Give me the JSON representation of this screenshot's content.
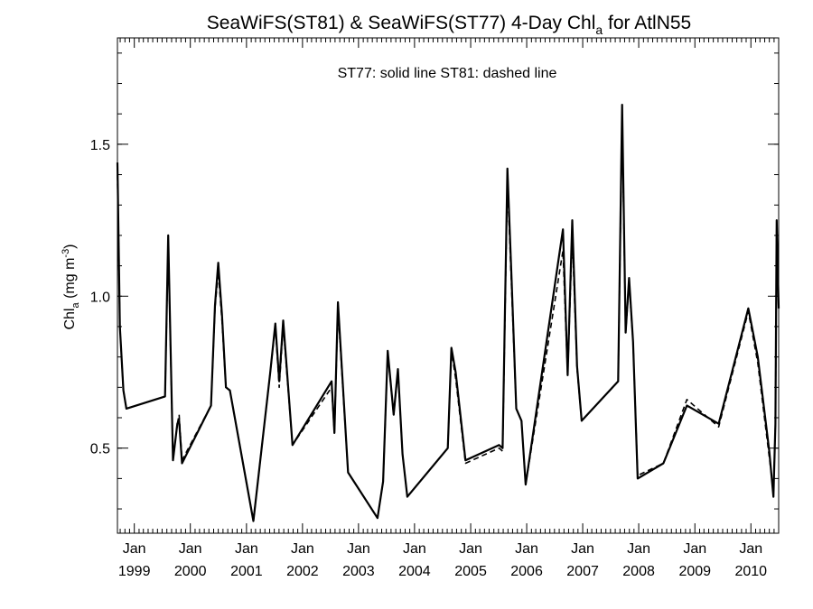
{
  "chart_data": {
    "type": "line",
    "title": {
      "main": "SeaWiFS(ST81) & SeaWiFS(ST77) 4-Day Chl",
      "subscript": "a",
      "suffix": " for AtlN55"
    },
    "ylabel": {
      "main": "Chl",
      "subscript": "a",
      "units_prefix": " (mg m",
      "units_superscript": "-3",
      "units_suffix": ")"
    },
    "annotation": "ST77: solid line   ST81: dashed line",
    "ylim": [
      0.22,
      1.85
    ],
    "yticks": [
      {
        "value": 0.5,
        "label": "0.5"
      },
      {
        "value": 1.0,
        "label": "1.0"
      },
      {
        "value": 1.5,
        "label": "1.5"
      }
    ],
    "y_minor_step": 0.1,
    "xlim": [
      "1998-09-13",
      "2010-07-01"
    ],
    "xticks": [
      {
        "date": "1999-01-01",
        "month": "Jan",
        "year": "1999"
      },
      {
        "date": "2000-01-01",
        "month": "Jan",
        "year": "2000"
      },
      {
        "date": "2001-01-01",
        "month": "Jan",
        "year": "2001"
      },
      {
        "date": "2002-01-01",
        "month": "Jan",
        "year": "2002"
      },
      {
        "date": "2003-01-01",
        "month": "Jan",
        "year": "2003"
      },
      {
        "date": "2004-01-01",
        "month": "Jan",
        "year": "2004"
      },
      {
        "date": "2005-01-01",
        "month": "Jan",
        "year": "2005"
      },
      {
        "date": "2006-01-01",
        "month": "Jan",
        "year": "2006"
      },
      {
        "date": "2007-01-01",
        "month": "Jan",
        "year": "2007"
      },
      {
        "date": "2008-01-01",
        "month": "Jan",
        "year": "2008"
      },
      {
        "date": "2009-01-01",
        "month": "Jan",
        "year": "2009"
      },
      {
        "date": "2010-01-01",
        "month": "Jan",
        "year": "2010"
      }
    ],
    "grid": false,
    "series": [
      {
        "style": "solid",
        "points": [
          [
            "1998-09-13",
            1.44
          ],
          [
            "1998-09-29",
            0.9
          ],
          [
            "1998-10-22",
            0.69
          ],
          [
            "1998-11-10",
            0.63
          ],
          [
            "1999-07-20",
            0.67
          ],
          [
            "1999-08-10",
            1.2
          ],
          [
            "1999-09-10",
            0.46
          ],
          [
            "1999-10-08",
            0.58
          ],
          [
            "1999-10-20",
            0.59
          ],
          [
            "1999-11-08",
            0.45
          ],
          [
            "2000-05-15",
            0.64
          ],
          [
            "2000-06-10",
            0.97
          ],
          [
            "2000-07-01",
            1.11
          ],
          [
            "2000-07-25",
            0.94
          ],
          [
            "2000-08-20",
            0.7
          ],
          [
            "2000-09-15",
            0.69
          ],
          [
            "2001-02-15",
            0.26
          ],
          [
            "2001-06-05",
            0.75
          ],
          [
            "2001-07-08",
            0.91
          ],
          [
            "2001-08-02",
            0.72
          ],
          [
            "2001-08-28",
            0.92
          ],
          [
            "2001-10-28",
            0.51
          ],
          [
            "2002-07-10",
            0.72
          ],
          [
            "2002-07-28",
            0.55
          ],
          [
            "2002-08-20",
            0.98
          ],
          [
            "2002-10-25",
            0.42
          ],
          [
            "2003-05-05",
            0.27
          ],
          [
            "2003-06-10",
            0.39
          ],
          [
            "2003-07-10",
            0.82
          ],
          [
            "2003-08-18",
            0.61
          ],
          [
            "2003-09-15",
            0.76
          ],
          [
            "2003-10-15",
            0.48
          ],
          [
            "2003-11-15",
            0.34
          ],
          [
            "2004-08-05",
            0.5
          ],
          [
            "2004-08-28",
            0.83
          ],
          [
            "2004-09-25",
            0.75
          ],
          [
            "2004-11-28",
            0.46
          ],
          [
            "2005-07-05",
            0.51
          ],
          [
            "2005-07-28",
            0.5
          ],
          [
            "2005-08-28",
            1.42
          ],
          [
            "2005-09-25",
            1.05
          ],
          [
            "2005-10-25",
            0.63
          ],
          [
            "2005-11-28",
            0.59
          ],
          [
            "2005-12-25",
            0.38
          ],
          [
            "2006-08-25",
            1.22
          ],
          [
            "2006-09-25",
            0.74
          ],
          [
            "2006-10-25",
            1.25
          ],
          [
            "2006-11-25",
            0.77
          ],
          [
            "2006-12-25",
            0.59
          ],
          [
            "2007-08-20",
            0.72
          ],
          [
            "2007-09-15",
            1.63
          ],
          [
            "2007-10-08",
            0.88
          ],
          [
            "2007-10-30",
            1.06
          ],
          [
            "2007-11-25",
            0.85
          ],
          [
            "2007-12-25",
            0.4
          ],
          [
            "2008-06-10",
            0.45
          ],
          [
            "2008-11-10",
            0.64
          ],
          [
            "2009-06-05",
            0.58
          ],
          [
            "2009-12-15",
            0.96
          ],
          [
            "2010-02-15",
            0.8
          ],
          [
            "2010-05-01",
            0.49
          ],
          [
            "2010-05-28",
            0.34
          ],
          [
            "2010-06-10",
            0.58
          ],
          [
            "2010-06-18",
            1.25
          ],
          [
            "2010-07-01",
            0.96
          ]
        ]
      },
      {
        "style": "dashed",
        "points": [
          [
            "1998-09-13",
            1.4
          ],
          [
            "1998-09-29",
            0.9
          ],
          [
            "1998-10-22",
            0.69
          ],
          [
            "1998-11-10",
            0.63
          ],
          [
            "1999-07-20",
            0.67
          ],
          [
            "1999-08-10",
            1.18
          ],
          [
            "1999-09-10",
            0.46
          ],
          [
            "1999-10-08",
            0.58
          ],
          [
            "1999-10-20",
            0.61
          ],
          [
            "1999-11-08",
            0.46
          ],
          [
            "2000-05-15",
            0.64
          ],
          [
            "2000-06-10",
            0.96
          ],
          [
            "2000-07-01",
            1.08
          ],
          [
            "2000-07-25",
            0.92
          ],
          [
            "2000-08-20",
            0.7
          ],
          [
            "2000-09-15",
            0.69
          ],
          [
            "2001-02-15",
            0.26
          ],
          [
            "2001-06-05",
            0.75
          ],
          [
            "2001-07-08",
            0.9
          ],
          [
            "2001-08-02",
            0.7
          ],
          [
            "2001-08-28",
            0.9
          ],
          [
            "2001-10-28",
            0.51
          ],
          [
            "2002-07-10",
            0.7
          ],
          [
            "2002-07-28",
            0.55
          ],
          [
            "2002-08-20",
            0.96
          ],
          [
            "2002-10-25",
            0.42
          ],
          [
            "2003-05-05",
            0.27
          ],
          [
            "2003-06-10",
            0.39
          ],
          [
            "2003-07-10",
            0.81
          ],
          [
            "2003-08-18",
            0.61
          ],
          [
            "2003-09-15",
            0.75
          ],
          [
            "2003-10-15",
            0.48
          ],
          [
            "2003-11-15",
            0.34
          ],
          [
            "2004-08-05",
            0.5
          ],
          [
            "2004-08-28",
            0.82
          ],
          [
            "2004-09-25",
            0.73
          ],
          [
            "2004-11-28",
            0.45
          ],
          [
            "2005-07-05",
            0.5
          ],
          [
            "2005-07-28",
            0.49
          ],
          [
            "2005-08-28",
            1.38
          ],
          [
            "2005-09-25",
            1.02
          ],
          [
            "2005-10-25",
            0.63
          ],
          [
            "2005-11-28",
            0.59
          ],
          [
            "2005-12-25",
            0.38
          ],
          [
            "2006-08-25",
            1.15
          ],
          [
            "2006-09-25",
            0.74
          ],
          [
            "2006-10-25",
            1.2
          ],
          [
            "2006-11-25",
            0.76
          ],
          [
            "2006-12-25",
            0.59
          ],
          [
            "2007-08-20",
            0.72
          ],
          [
            "2007-09-15",
            1.58
          ],
          [
            "2007-10-08",
            0.88
          ],
          [
            "2007-10-30",
            1.04
          ],
          [
            "2007-11-25",
            0.85
          ],
          [
            "2007-12-25",
            0.41
          ],
          [
            "2008-06-10",
            0.45
          ],
          [
            "2008-11-10",
            0.66
          ],
          [
            "2009-06-05",
            0.57
          ],
          [
            "2009-12-15",
            0.95
          ],
          [
            "2010-02-15",
            0.78
          ],
          [
            "2010-05-01",
            0.47
          ],
          [
            "2010-05-28",
            0.36
          ],
          [
            "2010-06-10",
            0.58
          ],
          [
            "2010-06-18",
            1.22
          ],
          [
            "2010-07-01",
            0.96
          ]
        ]
      }
    ]
  }
}
